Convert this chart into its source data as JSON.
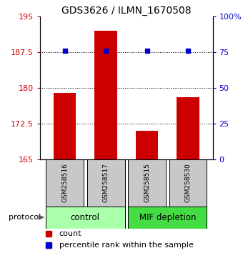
{
  "title": "GDS3626 / ILMN_1670508",
  "samples": [
    "GSM258516",
    "GSM258517",
    "GSM258515",
    "GSM258530"
  ],
  "bar_values": [
    179.0,
    192.0,
    171.0,
    178.0
  ],
  "percentile_values": [
    76,
    76,
    76,
    76
  ],
  "bar_color": "#cc0000",
  "dot_color": "#0000cc",
  "ylim_left": [
    165,
    195
  ],
  "yticks_left": [
    165,
    172.5,
    180,
    187.5,
    195
  ],
  "ylim_right": [
    0,
    100
  ],
  "yticks_right": [
    0,
    25,
    50,
    75,
    100
  ],
  "ytick_right_labels": [
    "0",
    "25",
    "50",
    "75",
    "100%"
  ],
  "protocol_colors": [
    "#aaffaa",
    "#44dd44"
  ],
  "background_color": "#ffffff",
  "bar_color_left": "#cc0000",
  "right_tick_color": "#0000cc"
}
